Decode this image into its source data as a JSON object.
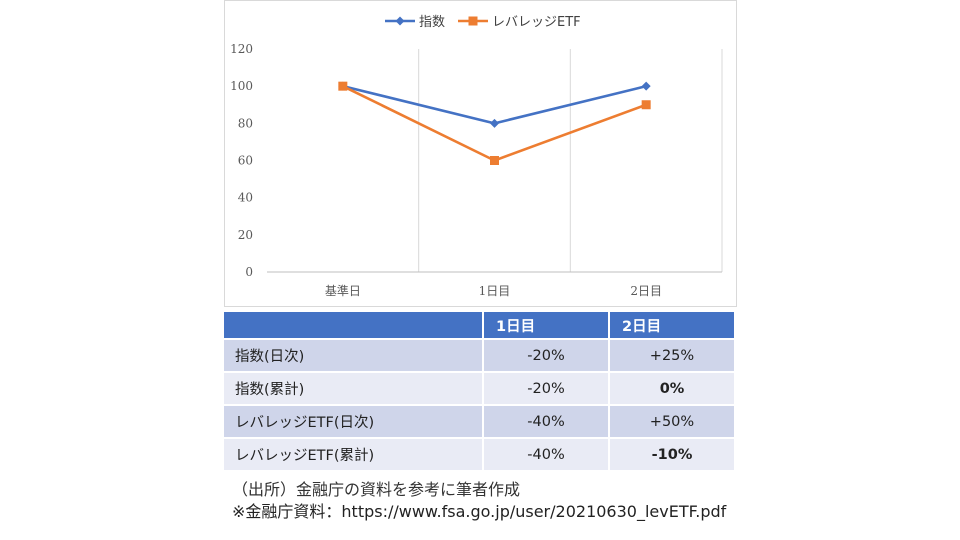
{
  "chart_data": {
    "type": "line",
    "categories": [
      "基準日",
      "1日目",
      "2日目"
    ],
    "series": [
      {
        "name": "指数",
        "values": [
          100,
          80,
          100
        ],
        "color": "#4472c4",
        "marker": "diamond"
      },
      {
        "name": "レバレッジETF",
        "values": [
          100,
          60,
          90
        ],
        "color": "#ed7d31",
        "marker": "square"
      }
    ],
    "ylim": [
      0,
      120
    ],
    "yticks": [
      0,
      20,
      40,
      60,
      80,
      100,
      120
    ],
    "title": "",
    "xlabel": "",
    "ylabel": "",
    "legend": "top-center"
  },
  "table": {
    "headers": [
      "",
      "1日目",
      "2日目"
    ],
    "rows": [
      {
        "label": "指数(日次)",
        "d1": "-20%",
        "d2": "+25%"
      },
      {
        "label": "指数(累計)",
        "d1": "-20%",
        "d2": "0%"
      },
      {
        "label": "レバレッジETF(日次)",
        "d1": "-40%",
        "d2": "+50%"
      },
      {
        "label": "レバレッジETF(累計)",
        "d1": "-40%",
        "d2": "-10%"
      }
    ]
  },
  "footer": {
    "source": "（出所）金融庁の資料を参考に筆者作成",
    "note": "※金融庁資料：https://www.fsa.go.jp/user/20210630_levETF.pdf"
  }
}
